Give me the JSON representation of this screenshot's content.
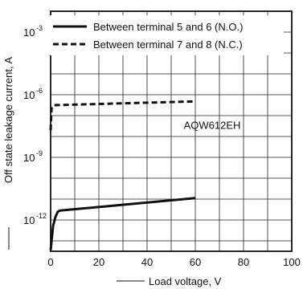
{
  "chart_data": {
    "type": "line",
    "xlabel": "Load voltage, V",
    "ylabel": "Off state leakage current, A",
    "y_scale": "log",
    "xlim": [
      0,
      100
    ],
    "ylim_exponent": [
      -13.5,
      -2
    ],
    "grid": true,
    "legend_position": "top-right",
    "x_ticks": [
      {
        "value": 0,
        "label": "0"
      },
      {
        "value": 20,
        "label": "20"
      },
      {
        "value": 40,
        "label": "40"
      },
      {
        "value": 60,
        "label": "60"
      },
      {
        "value": 80,
        "label": "80"
      },
      {
        "value": 100,
        "label": "100"
      }
    ],
    "y_ticks": [
      {
        "exponent": -3,
        "base": "10",
        "exp": "-3"
      },
      {
        "exponent": -6,
        "base": "10",
        "exp": "-6"
      },
      {
        "exponent": -9,
        "base": "10",
        "exp": "-9"
      },
      {
        "exponent": -12,
        "base": "10",
        "exp": "-12"
      }
    ],
    "series": [
      {
        "name": "Between terminal 5 and 6 (N.O.)",
        "style": "solid",
        "points": [
          [
            0,
            -13.45
          ],
          [
            1,
            -12.3
          ],
          [
            2,
            -11.85
          ],
          [
            3,
            -11.6
          ],
          [
            4,
            -11.55
          ],
          [
            60,
            -10.95
          ]
        ]
      },
      {
        "name": "Between terminal 7 and 8 (N.C.)",
        "style": "dashed",
        "points": [
          [
            0,
            -7.7
          ],
          [
            0.4,
            -6.6
          ],
          [
            1.5,
            -6.5
          ],
          [
            60,
            -6.32
          ]
        ]
      }
    ],
    "annotations": [
      {
        "text": "AQW612EH",
        "x": 63,
        "exponent": -7.45
      }
    ]
  }
}
